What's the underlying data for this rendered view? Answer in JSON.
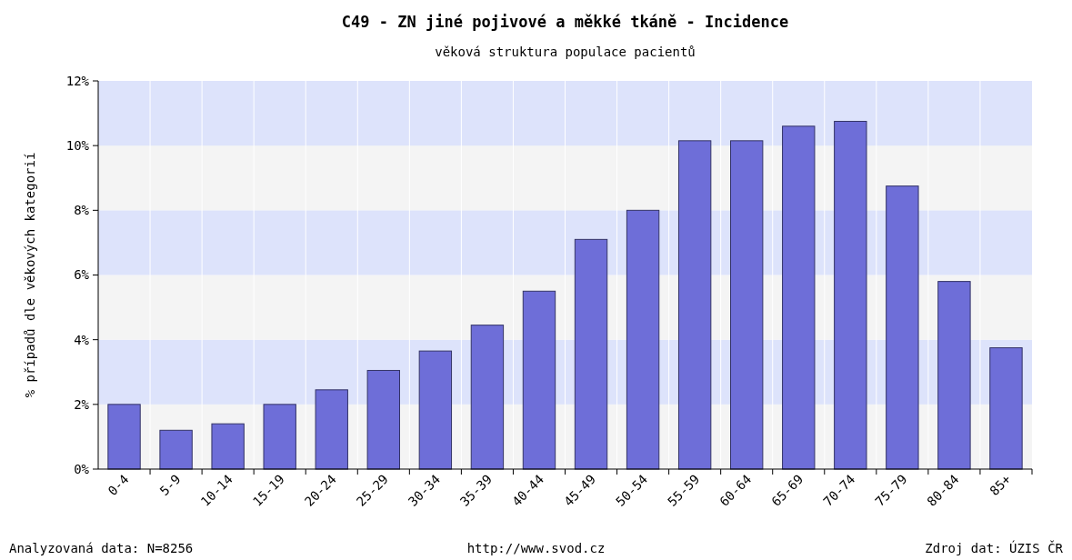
{
  "chart_data": {
    "type": "bar",
    "title": "C49 - ZN jiné pojivové a měkké tkáně - Incidence",
    "subtitle": "věková struktura populace pacientů",
    "ylabel": "% případů dle věkových kategorií",
    "categories": [
      "0-4",
      "5-9",
      "10-14",
      "15-19",
      "20-24",
      "25-29",
      "30-34",
      "35-39",
      "40-44",
      "45-49",
      "50-54",
      "55-59",
      "60-64",
      "65-69",
      "70-74",
      "75-79",
      "80-84",
      "85+"
    ],
    "values": [
      2.0,
      1.2,
      1.4,
      2.0,
      2.45,
      3.05,
      3.65,
      4.45,
      5.5,
      7.1,
      8.0,
      10.15,
      10.15,
      10.6,
      10.75,
      8.75,
      5.8,
      3.75
    ],
    "color": "#6e6ed8",
    "ylim": [
      0,
      12
    ],
    "yticks": [
      {
        "value": 0,
        "label": "0%"
      },
      {
        "value": 2,
        "label": "2%"
      },
      {
        "value": 4,
        "label": "4%"
      },
      {
        "value": 6,
        "label": "6%"
      },
      {
        "value": 8,
        "label": "8%"
      },
      {
        "value": 10,
        "label": "10%"
      },
      {
        "value": 12,
        "label": "12%"
      }
    ],
    "grid": true,
    "annotations": [
      "Analyzovaná data: N=8256",
      "http://www.svod.cz",
      "Zdroj dat: ÚZIS ČR"
    ]
  }
}
